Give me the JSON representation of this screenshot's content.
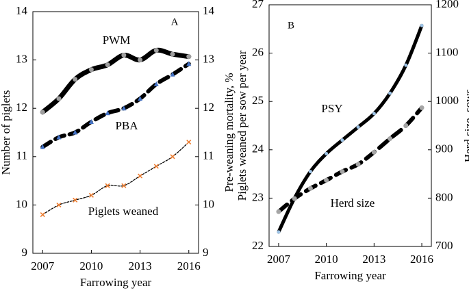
{
  "chart_data": [
    {
      "type": "line",
      "panel_label": "A",
      "x": [
        2007,
        2008,
        2009,
        2010,
        2011,
        2012,
        2013,
        2014,
        2015,
        2016
      ],
      "xlim": [
        2006.4,
        2016.6
      ],
      "xticks": [
        2007,
        2010,
        2013,
        2016
      ],
      "ylim": [
        9,
        14
      ],
      "yticks": [
        9,
        10,
        11,
        12,
        13,
        14
      ],
      "y2lim": [
        9,
        14
      ],
      "y2ticks": [
        9,
        10,
        11,
        12,
        13,
        14
      ],
      "xlabel": "Farrowing year",
      "ylabel": "Number of piglets",
      "y2label": "Pre-weaning mortality, %",
      "series": [
        {
          "name": "PWM",
          "color": "#9e9e9e",
          "axis": "y2",
          "values": [
            11.92,
            12.2,
            12.6,
            12.8,
            12.9,
            13.1,
            13.0,
            13.2,
            13.12,
            13.07
          ]
        },
        {
          "name": "PBA",
          "color": "#4472c4",
          "values": [
            11.2,
            11.4,
            11.5,
            11.72,
            11.9,
            12.0,
            12.2,
            12.5,
            12.7,
            12.92
          ]
        },
        {
          "name": "Piglets weaned",
          "color": "#ed7d31",
          "values": [
            9.8,
            10.0,
            10.1,
            10.2,
            10.4,
            10.4,
            10.6,
            10.8,
            11.0,
            11.3
          ]
        }
      ]
    },
    {
      "type": "line",
      "panel_label": "B",
      "x": [
        2007,
        2008,
        2009,
        2010,
        2011,
        2012,
        2013,
        2014,
        2015,
        2016
      ],
      "xlim": [
        2006.4,
        2016.6
      ],
      "xticks": [
        2007,
        2010,
        2013,
        2016
      ],
      "ylim": [
        22,
        27
      ],
      "yticks": [
        22,
        23,
        24,
        25,
        26,
        27
      ],
      "y2lim": [
        700,
        1200
      ],
      "y2ticks": [
        700,
        800,
        900,
        1000,
        1100,
        1200
      ],
      "xlabel": "Farrowing year",
      "ylabel": "Piglets weaned per sow per year",
      "y2label": "Herd size, sows",
      "series": [
        {
          "name": "PSY",
          "color": "#9dc3e6",
          "values": [
            22.3,
            23.0,
            23.55,
            23.92,
            24.2,
            24.47,
            24.75,
            25.17,
            25.75,
            26.57
          ]
        },
        {
          "name": "Herd size",
          "color": "#a5a5a5",
          "axis": "y2",
          "values": [
            772,
            799,
            820,
            837,
            855,
            870,
            895,
            923,
            950,
            987
          ]
        }
      ]
    }
  ]
}
